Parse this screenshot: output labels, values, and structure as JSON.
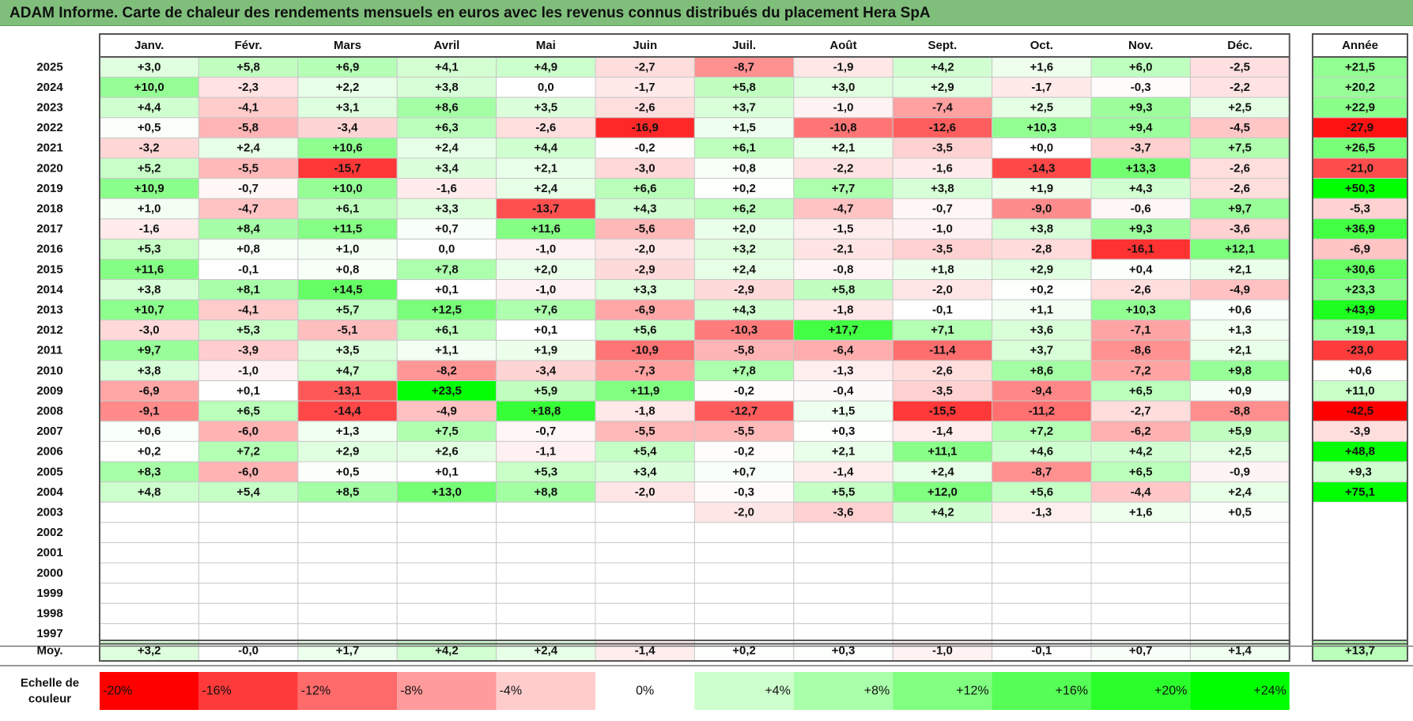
{
  "title": "ADAM Informe. Carte de chaleur des rendements mensuels en euros avec les revenus connus distribués du placement Hera SpA",
  "chart_data": {
    "type": "heatmap",
    "title": "ADAM Informe. Carte de chaleur des rendements mensuels en euros avec les revenus connus distribués du placement Hera SpA",
    "months": [
      "Janv.",
      "Févr.",
      "Mars",
      "Avril",
      "Mai",
      "Juin",
      "Juil.",
      "Août",
      "Sept.",
      "Oct.",
      "Nov.",
      "Déc."
    ],
    "year_header": "Année",
    "rows": [
      {
        "year": "2025",
        "values": [
          "+3,0",
          "+5,8",
          "+6,9",
          "+4,1",
          "+4,9",
          "-2,7",
          "-8,7",
          "-1,9",
          "+4,2",
          "+1,6",
          "+6,0",
          "-2,5"
        ],
        "annual": "+21,5"
      },
      {
        "year": "2024",
        "values": [
          "+10,0",
          "-2,3",
          "+2,2",
          "+3,8",
          "0,0",
          "-1,7",
          "+5,8",
          "+3,0",
          "+2,9",
          "-1,7",
          "-0,3",
          "-2,2"
        ],
        "annual": "+20,2"
      },
      {
        "year": "2023",
        "values": [
          "+4,4",
          "-4,1",
          "+3,1",
          "+8,6",
          "+3,5",
          "-2,6",
          "+3,7",
          "-1,0",
          "-7,4",
          "+2,5",
          "+9,3",
          "+2,5"
        ],
        "annual": "+22,9"
      },
      {
        "year": "2022",
        "values": [
          "+0,5",
          "-5,8",
          "-3,4",
          "+6,3",
          "-2,6",
          "-16,9",
          "+1,5",
          "-10,8",
          "-12,6",
          "+10,3",
          "+9,4",
          "-4,5"
        ],
        "annual": "-27,9"
      },
      {
        "year": "2021",
        "values": [
          "-3,2",
          "+2,4",
          "+10,6",
          "+2,4",
          "+4,4",
          "-0,2",
          "+6,1",
          "+2,1",
          "-3,5",
          "+0,0",
          "-3,7",
          "+7,5"
        ],
        "annual": "+26,5"
      },
      {
        "year": "2020",
        "values": [
          "+5,2",
          "-5,5",
          "-15,7",
          "+3,4",
          "+2,1",
          "-3,0",
          "+0,8",
          "-2,2",
          "-1,6",
          "-14,3",
          "+13,3",
          "-2,6"
        ],
        "annual": "-21,0"
      },
      {
        "year": "2019",
        "values": [
          "+10,9",
          "-0,7",
          "+10,0",
          "-1,6",
          "+2,4",
          "+6,6",
          "+0,2",
          "+7,7",
          "+3,8",
          "+1,9",
          "+4,3",
          "-2,6"
        ],
        "annual": "+50,3"
      },
      {
        "year": "2018",
        "values": [
          "+1,0",
          "-4,7",
          "+6,1",
          "+3,3",
          "-13,7",
          "+4,3",
          "+6,2",
          "-4,7",
          "-0,7",
          "-9,0",
          "-0,6",
          "+9,7"
        ],
        "annual": "-5,3"
      },
      {
        "year": "2017",
        "values": [
          "-1,6",
          "+8,4",
          "+11,5",
          "+0,7",
          "+11,6",
          "-5,6",
          "+2,0",
          "-1,5",
          "-1,0",
          "+3,8",
          "+9,3",
          "-3,6"
        ],
        "annual": "+36,9"
      },
      {
        "year": "2016",
        "values": [
          "+5,3",
          "+0,8",
          "+1,0",
          "0,0",
          "-1,0",
          "-2,0",
          "+3,2",
          "-2,1",
          "-3,5",
          "-2,8",
          "-16,1",
          "+12,1"
        ],
        "annual": "-6,9"
      },
      {
        "year": "2015",
        "values": [
          "+11,6",
          "-0,1",
          "+0,8",
          "+7,8",
          "+2,0",
          "-2,9",
          "+2,4",
          "-0,8",
          "+1,8",
          "+2,9",
          "+0,4",
          "+2,1"
        ],
        "annual": "+30,6"
      },
      {
        "year": "2014",
        "values": [
          "+3,8",
          "+8,1",
          "+14,5",
          "+0,1",
          "-1,0",
          "+3,3",
          "-2,9",
          "+5,8",
          "-2,0",
          "+0,2",
          "-2,6",
          "-4,9"
        ],
        "annual": "+23,3"
      },
      {
        "year": "2013",
        "values": [
          "+10,7",
          "-4,1",
          "+5,7",
          "+12,5",
          "+7,6",
          "-6,9",
          "+4,3",
          "-1,8",
          "-0,1",
          "+1,1",
          "+10,3",
          "+0,6"
        ],
        "annual": "+43,9"
      },
      {
        "year": "2012",
        "values": [
          "-3,0",
          "+5,3",
          "-5,1",
          "+6,1",
          "+0,1",
          "+5,6",
          "-10,3",
          "+17,7",
          "+7,1",
          "+3,6",
          "-7,1",
          "+1,3"
        ],
        "annual": "+19,1"
      },
      {
        "year": "2011",
        "values": [
          "+9,7",
          "-3,9",
          "+3,5",
          "+1,1",
          "+1,9",
          "-10,9",
          "-5,8",
          "-6,4",
          "-11,4",
          "+3,7",
          "-8,6",
          "+2,1"
        ],
        "annual": "-23,0"
      },
      {
        "year": "2010",
        "values": [
          "+3,8",
          "-1,0",
          "+4,7",
          "-8,2",
          "-3,4",
          "-7,3",
          "+7,8",
          "-1,3",
          "-2,6",
          "+8,6",
          "-7,2",
          "+9,8"
        ],
        "annual": "+0,6"
      },
      {
        "year": "2009",
        "values": [
          "-6,9",
          "+0,1",
          "-13,1",
          "+23,5",
          "+5,9",
          "+11,9",
          "-0,2",
          "-0,4",
          "-3,5",
          "-9,4",
          "+6,5",
          "+0,9"
        ],
        "annual": "+11,0"
      },
      {
        "year": "2008",
        "values": [
          "-9,1",
          "+6,5",
          "-14,4",
          "-4,9",
          "+18,8",
          "-1,8",
          "-12,7",
          "+1,5",
          "-15,5",
          "-11,2",
          "-2,7",
          "-8,8"
        ],
        "annual": "-42,5"
      },
      {
        "year": "2007",
        "values": [
          "+0,6",
          "-6,0",
          "+1,3",
          "+7,5",
          "-0,7",
          "-5,5",
          "-5,5",
          "+0,3",
          "-1,4",
          "+7,2",
          "-6,2",
          "+5,9"
        ],
        "annual": "-3,9"
      },
      {
        "year": "2006",
        "values": [
          "+0,2",
          "+7,2",
          "+2,9",
          "+2,6",
          "-1,1",
          "+5,4",
          "-0,2",
          "+2,1",
          "+11,1",
          "+4,6",
          "+4,2",
          "+2,5"
        ],
        "annual": "+48,8"
      },
      {
        "year": "2005",
        "values": [
          "+8,3",
          "-6,0",
          "+0,5",
          "+0,1",
          "+5,3",
          "+3,4",
          "+0,7",
          "-1,4",
          "+2,4",
          "-8,7",
          "+6,5",
          "-0,9"
        ],
        "annual": "+9,3"
      },
      {
        "year": "2004",
        "values": [
          "+4,8",
          "+5,4",
          "+8,5",
          "+13,0",
          "+8,8",
          "-2,0",
          "-0,3",
          "+5,5",
          "+12,0",
          "+5,6",
          "-4,4",
          "+2,4"
        ],
        "annual": "+75,1"
      },
      {
        "year": "2003",
        "values": [
          "",
          "",
          "",
          "",
          "",
          "",
          "-2,0",
          "-3,6",
          "+4,2",
          "-1,3",
          "+1,6",
          "+0,5"
        ],
        "annual": ""
      },
      {
        "year": "2002",
        "values": [
          "",
          "",
          "",
          "",
          "",
          "",
          "",
          "",
          "",
          "",
          "",
          ""
        ],
        "annual": ""
      },
      {
        "year": "2001",
        "values": [
          "",
          "",
          "",
          "",
          "",
          "",
          "",
          "",
          "",
          "",
          "",
          ""
        ],
        "annual": ""
      },
      {
        "year": "2000",
        "values": [
          "",
          "",
          "",
          "",
          "",
          "",
          "",
          "",
          "",
          "",
          "",
          ""
        ],
        "annual": ""
      },
      {
        "year": "1999",
        "values": [
          "",
          "",
          "",
          "",
          "",
          "",
          "",
          "",
          "",
          "",
          "",
          ""
        ],
        "annual": ""
      },
      {
        "year": "1998",
        "values": [
          "",
          "",
          "",
          "",
          "",
          "",
          "",
          "",
          "",
          "",
          "",
          ""
        ],
        "annual": ""
      },
      {
        "year": "1997",
        "values": [
          "",
          "",
          "",
          "",
          "",
          "",
          "",
          "",
          "",
          "",
          "",
          ""
        ],
        "annual": ""
      }
    ],
    "average": {
      "label": "Moy.",
      "values": [
        "+3,2",
        "-0,0",
        "+1,7",
        "+4,2",
        "+2,4",
        "-1,4",
        "+0,2",
        "+0,3",
        "-1,0",
        "-0,1",
        "+0,7",
        "+1,4"
      ],
      "annual": "+13,7"
    },
    "scale": {
      "label_lines": [
        "Echelle de",
        "couleur"
      ],
      "steps": [
        {
          "label": "-20%",
          "value": -20,
          "color": "#ff0000",
          "align": "left"
        },
        {
          "label": "-16%",
          "value": -16,
          "color": "#ff3a3a",
          "align": "left"
        },
        {
          "label": "-12%",
          "value": -12,
          "color": "#ff6a6a",
          "align": "left"
        },
        {
          "label": "-8%",
          "value": -8,
          "color": "#ff9b9b",
          "align": "left"
        },
        {
          "label": "-4%",
          "value": -4,
          "color": "#ffcccc",
          "align": "left"
        },
        {
          "label": "0%",
          "value": 0,
          "color": "#ffffff",
          "align": "center"
        },
        {
          "label": "+4%",
          "value": 4,
          "color": "#ccffcc",
          "align": "right"
        },
        {
          "label": "+8%",
          "value": 8,
          "color": "#aaffaa",
          "align": "right"
        },
        {
          "label": "+12%",
          "value": 12,
          "color": "#80ff80",
          "align": "right"
        },
        {
          "label": "+16%",
          "value": 16,
          "color": "#55ff55",
          "align": "right"
        },
        {
          "label": "+20%",
          "value": 20,
          "color": "#2bff2b",
          "align": "right"
        },
        {
          "label": "+24%",
          "value": 24,
          "color": "#00ff00",
          "align": "right"
        }
      ]
    },
    "annual_color_scale": {
      "negative_max": -30,
      "positive_max": 50
    }
  }
}
